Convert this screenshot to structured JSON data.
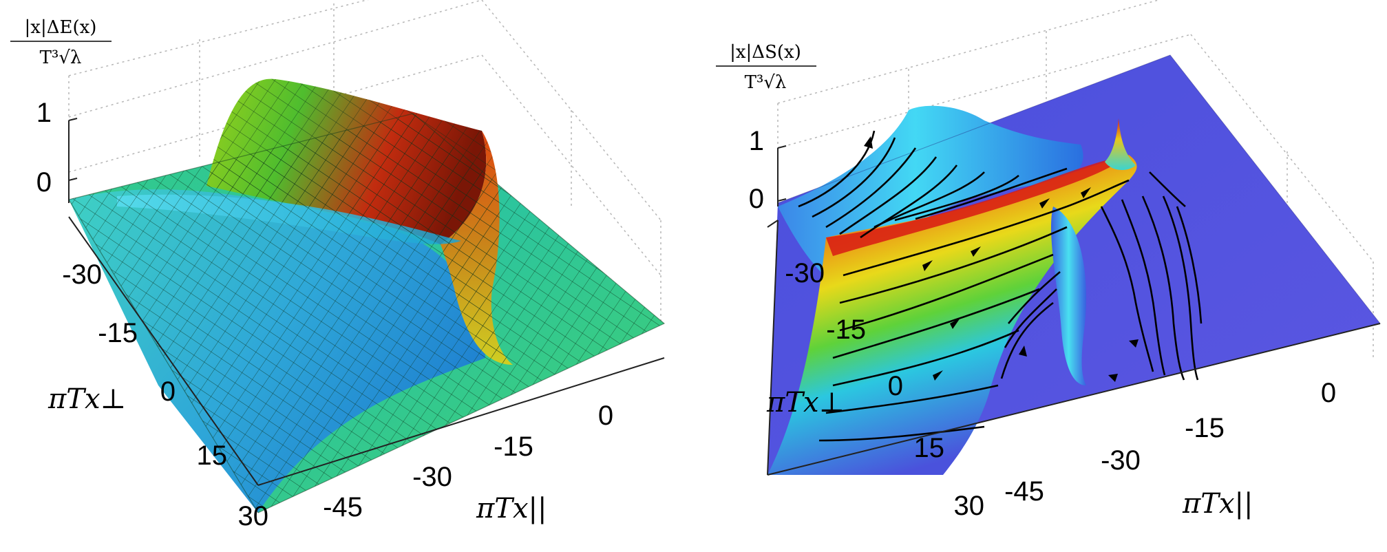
{
  "chart_data": [
    {
      "type": "surface",
      "ylabel": "|x|ΔE(x) / T³√λ",
      "ylabel_num": "|x|ΔE(x)",
      "ylabel_den": "T³√λ",
      "xlabel_par": "πTx||",
      "xlabel_perp": "πTx⊥",
      "z_ticks": [
        "1",
        "0"
      ],
      "x_par_ticks": [
        "-45",
        "-30",
        "-15",
        "0"
      ],
      "x_perp_ticks": [
        "-30",
        "-15",
        "0",
        "15",
        "30"
      ],
      "x_par_range": [
        -52,
        8
      ],
      "x_perp_range": [
        -36,
        30
      ],
      "surface": "mesh, jet-like colouring",
      "colors": {
        "low": "#1f9bd6",
        "mid": "#2ecc71",
        "high": "#d62a12"
      }
    },
    {
      "type": "surface",
      "ylabel": "|x|ΔS(x) / T³√λ",
      "ylabel_num": "|x|ΔS(x)",
      "ylabel_den": "T³√λ",
      "xlabel_par": "πTx||",
      "xlabel_perp": "πTx⊥",
      "z_ticks": [
        "1",
        "0"
      ],
      "x_par_ticks": [
        "-45",
        "-30",
        "-15",
        "0"
      ],
      "x_perp_ticks": [
        "-30",
        "-15",
        "0",
        "15",
        "30"
      ],
      "x_par_range": [
        -52,
        8
      ],
      "x_perp_range": [
        -36,
        30
      ],
      "surface": "smooth shaded with black flow streamlines",
      "colors": {
        "low": "#4e4ddb",
        "mid": "#2bc7e0",
        "high": "#d8141a"
      }
    }
  ]
}
